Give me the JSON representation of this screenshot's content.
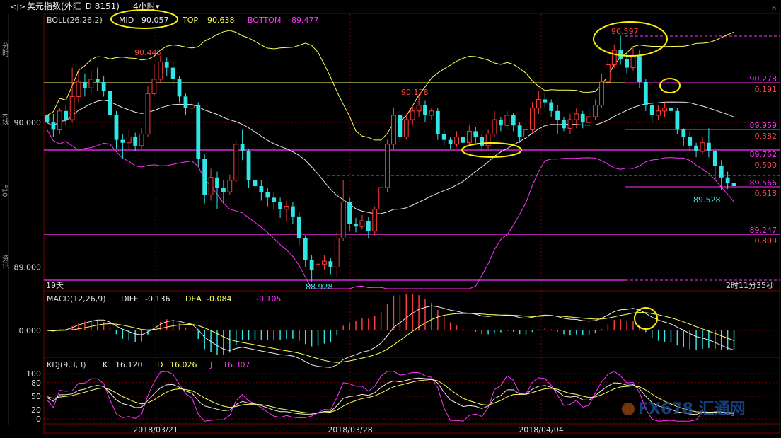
{
  "header": {
    "title": "美元指数(外汇_D 8151)",
    "period": "4小时",
    "period_caret": "▾",
    "nav_icon": "back-forward-icon"
  },
  "left_sidebar": {
    "labels": [
      "分时",
      "K线",
      "F10",
      "资讯"
    ]
  },
  "boll": {
    "label": "BOLL(26,26,2)",
    "mid_label": "MID",
    "mid_value": "90.057",
    "top_label": "TOP",
    "top_value": "90.638",
    "bottom_label": "BOTTOM",
    "bottom_value": "89.477"
  },
  "macd": {
    "label": "MACD(12,26,9)",
    "diff_label": "DIFF",
    "diff_value": "-0.136",
    "dea_label": "DEA",
    "dea_value": "-0.084",
    "macd_value": "-0.105",
    "zero_tick": "0.000"
  },
  "kdj": {
    "label": "KDJ(9,3,3)",
    "k_label": "K",
    "k_value": "16.120",
    "d_label": "D",
    "d_value": "16.026",
    "j_label": "J",
    "j_value": "16.307",
    "ticks": [
      "100",
      "80",
      "50",
      "20",
      "0"
    ]
  },
  "status": {
    "days": "19天",
    "countdown": "2时11分35秒"
  },
  "annotations": {
    "high_left": "90.445",
    "high_right": "90.597",
    "mid_high": "90.178",
    "low": "88.928",
    "last_low": "89.528"
  },
  "fibo": [
    {
      "price": "90.278",
      "ratio": "0.191"
    },
    {
      "price": "89.959",
      "ratio": "0.382"
    },
    {
      "price": "89.762",
      "ratio": "0.500"
    },
    {
      "price": "89.566",
      "ratio": "0.618"
    },
    {
      "price": "89.247",
      "ratio": "0.809"
    }
  ],
  "watermark": "FX678 汇通网",
  "colors": {
    "up": "#ff3b3b",
    "down": "#2fe6e6",
    "mid": "#e6e6e6",
    "top": "#ffff55",
    "bottom": "#ff33ff",
    "fibo": "#ff33ff",
    "grid": "#7a0000",
    "highlight": "#ffee00"
  },
  "chart_data": {
    "type": "candlestick",
    "y_axis": {
      "ticks": [
        "90.000",
        "89.000"
      ],
      "range": [
        88.85,
        90.75
      ]
    },
    "x_axis": {
      "ticks": [
        "2018/03/21",
        "2018/03/28",
        "2018/04/04"
      ]
    },
    "candles": [
      [
        90.05,
        90.0,
        90.12,
        89.92
      ],
      [
        90.0,
        89.95,
        90.06,
        89.9
      ],
      [
        89.95,
        90.08,
        90.1,
        89.92
      ],
      [
        90.08,
        90.02,
        90.12,
        89.98
      ],
      [
        90.02,
        90.18,
        90.38,
        90.0
      ],
      [
        90.18,
        90.28,
        90.35,
        90.14
      ],
      [
        90.28,
        90.24,
        90.34,
        90.18
      ],
      [
        90.24,
        90.3,
        90.36,
        90.2
      ],
      [
        90.3,
        90.28,
        90.38,
        90.22
      ],
      [
        90.28,
        90.22,
        90.32,
        90.18
      ],
      [
        90.22,
        90.05,
        90.25,
        90.0
      ],
      [
        90.05,
        89.88,
        90.08,
        89.82
      ],
      [
        89.88,
        89.86,
        89.92,
        89.75
      ],
      [
        89.86,
        89.9,
        89.95,
        89.82
      ],
      [
        89.9,
        89.84,
        89.93,
        89.8
      ],
      [
        89.84,
        89.92,
        89.96,
        89.82
      ],
      [
        89.92,
        90.2,
        90.25,
        89.9
      ],
      [
        90.2,
        90.3,
        90.4,
        90.18
      ],
      [
        90.3,
        90.42,
        90.46,
        90.28
      ],
      [
        90.42,
        90.38,
        90.45,
        90.32
      ],
      [
        90.38,
        90.3,
        90.42,
        90.25
      ],
      [
        90.3,
        90.18,
        90.32,
        90.14
      ],
      [
        90.18,
        90.1,
        90.2,
        90.05
      ],
      [
        90.1,
        90.12,
        90.16,
        90.06
      ],
      [
        90.12,
        89.75,
        90.14,
        89.7
      ],
      [
        89.75,
        89.5,
        89.78,
        89.44
      ],
      [
        89.5,
        89.62,
        89.68,
        89.46
      ],
      [
        89.62,
        89.55,
        89.66,
        89.4
      ],
      [
        89.55,
        89.52,
        89.6,
        89.44
      ],
      [
        89.52,
        89.6,
        89.64,
        89.5
      ],
      [
        89.6,
        89.85,
        89.88,
        89.58
      ],
      [
        89.85,
        89.8,
        89.95,
        89.74
      ],
      [
        89.8,
        89.6,
        89.82,
        89.55
      ],
      [
        89.6,
        89.56,
        89.62,
        89.48
      ],
      [
        89.56,
        89.52,
        89.6,
        89.46
      ],
      [
        89.52,
        89.48,
        89.55,
        89.42
      ],
      [
        89.48,
        89.45,
        89.52,
        89.4
      ],
      [
        89.45,
        89.4,
        89.48,
        89.34
      ],
      [
        89.4,
        89.42,
        89.46,
        89.32
      ],
      [
        89.42,
        89.35,
        89.45,
        89.3
      ],
      [
        89.35,
        89.2,
        89.38,
        89.15
      ],
      [
        89.2,
        89.05,
        89.22,
        89.0
      ],
      [
        89.05,
        88.98,
        89.08,
        88.9
      ],
      [
        88.98,
        89.02,
        89.06,
        88.94
      ],
      [
        89.02,
        89.04,
        89.08,
        88.98
      ],
      [
        89.04,
        89.0,
        89.06,
        88.95
      ],
      [
        89.0,
        89.2,
        89.25,
        88.93
      ],
      [
        89.2,
        89.45,
        89.6,
        89.18
      ],
      [
        89.45,
        89.3,
        89.48,
        89.25
      ],
      [
        89.3,
        89.28,
        89.34,
        89.24
      ],
      [
        89.28,
        89.32,
        89.36,
        89.26
      ],
      [
        89.32,
        89.25,
        89.35,
        89.2
      ],
      [
        89.25,
        89.4,
        89.42,
        89.22
      ],
      [
        89.4,
        89.55,
        89.58,
        89.38
      ],
      [
        89.55,
        89.85,
        89.88,
        89.52
      ],
      [
        89.85,
        90.05,
        90.1,
        89.82
      ],
      [
        90.05,
        89.9,
        90.08,
        89.86
      ],
      [
        89.9,
        90.02,
        90.06,
        89.88
      ],
      [
        90.02,
        90.08,
        90.12,
        89.98
      ],
      [
        90.08,
        90.12,
        90.18,
        90.04
      ],
      [
        90.12,
        90.05,
        90.15,
        90.0
      ],
      [
        90.05,
        90.08,
        90.1,
        90.02
      ],
      [
        90.08,
        89.92,
        90.1,
        89.88
      ],
      [
        89.92,
        89.88,
        89.95,
        89.84
      ],
      [
        89.88,
        89.85,
        89.9,
        89.82
      ],
      [
        89.85,
        89.9,
        89.94,
        89.83
      ],
      [
        89.9,
        89.86,
        89.92,
        89.82
      ],
      [
        89.86,
        89.94,
        89.98,
        89.84
      ],
      [
        89.94,
        89.9,
        89.97,
        89.86
      ],
      [
        89.9,
        89.84,
        89.92,
        89.8
      ],
      [
        89.84,
        89.92,
        89.95,
        89.82
      ],
      [
        89.92,
        90.02,
        90.08,
        89.9
      ],
      [
        90.02,
        89.98,
        90.04,
        89.94
      ],
      [
        89.98,
        90.05,
        90.08,
        89.95
      ],
      [
        90.05,
        89.98,
        90.07,
        89.94
      ],
      [
        89.98,
        89.9,
        90.0,
        89.86
      ],
      [
        89.9,
        89.95,
        89.98,
        89.88
      ],
      [
        89.95,
        90.1,
        90.14,
        89.92
      ],
      [
        90.1,
        90.16,
        90.22,
        90.06
      ],
      [
        90.16,
        90.14,
        90.2,
        90.1
      ],
      [
        90.14,
        90.08,
        90.16,
        90.04
      ],
      [
        90.08,
        90.02,
        90.12,
        89.92
      ],
      [
        90.02,
        89.96,
        90.04,
        89.94
      ],
      [
        89.96,
        90.02,
        90.06,
        89.92
      ],
      [
        90.02,
        90.06,
        90.1,
        89.96
      ],
      [
        90.06,
        90.0,
        90.08,
        89.96
      ],
      [
        90.0,
        90.04,
        90.1,
        89.98
      ],
      [
        90.04,
        90.12,
        90.16,
        90.02
      ],
      [
        90.12,
        90.28,
        90.34,
        90.1
      ],
      [
        90.28,
        90.4,
        90.44,
        90.26
      ],
      [
        90.4,
        90.5,
        90.54,
        90.38
      ],
      [
        90.5,
        90.44,
        90.6,
        90.4
      ],
      [
        90.44,
        90.38,
        90.48,
        90.34
      ],
      [
        90.38,
        90.46,
        90.52,
        90.36
      ],
      [
        90.46,
        90.28,
        90.5,
        90.24
      ],
      [
        90.28,
        90.12,
        90.3,
        90.08
      ],
      [
        90.12,
        90.05,
        90.14,
        90.0
      ],
      [
        90.05,
        90.08,
        90.12,
        90.02
      ],
      [
        90.08,
        90.1,
        90.14,
        90.04
      ],
      [
        90.1,
        90.08,
        90.12,
        90.05
      ],
      [
        90.08,
        89.95,
        90.1,
        89.92
      ],
      [
        89.95,
        89.9,
        89.96,
        89.84
      ],
      [
        89.9,
        89.84,
        89.94,
        89.8
      ],
      [
        89.84,
        89.8,
        89.86,
        89.76
      ],
      [
        89.8,
        89.86,
        89.9,
        89.78
      ],
      [
        89.86,
        89.8,
        89.96,
        89.76
      ],
      [
        89.8,
        89.7,
        89.82,
        89.6
      ],
      [
        89.7,
        89.62,
        89.74,
        89.53
      ],
      [
        89.62,
        89.58,
        89.66,
        89.54
      ],
      [
        89.58,
        89.56,
        89.62,
        89.53
      ]
    ]
  }
}
